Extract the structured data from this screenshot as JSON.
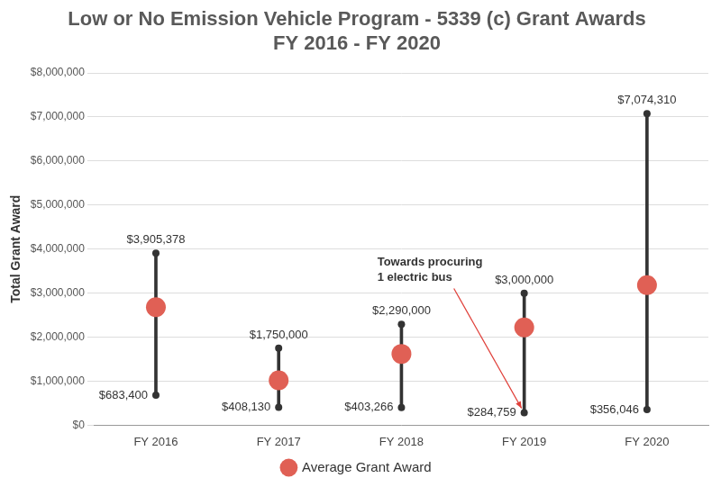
{
  "chart_data": {
    "type": "range",
    "title": [
      "Low or No Emission Vehicle Program - 5339 (c) Grant Awards",
      "FY 2016 - FY 2020"
    ],
    "y_label": "Total Grant Award",
    "categories": [
      "FY 2016",
      "FY 2017",
      "FY 2018",
      "FY 2019",
      "FY 2020"
    ],
    "ranges": {
      "color": "#333333",
      "low": [
        683400,
        408130,
        403266,
        284759,
        356046
      ],
      "low_labels": [
        "$683,400",
        "$408,130",
        "$403,266",
        "$284,759",
        "$356,046"
      ],
      "high": [
        3905378,
        1750000,
        2290000,
        3000000,
        7074310
      ],
      "high_labels": [
        "$3,905,378",
        "$1,750,000",
        "$2,290,000",
        "$3,000,000",
        "$7,074,310"
      ]
    },
    "series": [
      {
        "name": "Average Grant Award",
        "color": "#e06055",
        "marker": "circle",
        "values": [
          2680000,
          1020000,
          1620000,
          2220000,
          3180000
        ]
      }
    ],
    "ylim": [
      0,
      8000000
    ],
    "yticks": [
      {
        "value": 0,
        "label": "$0"
      },
      {
        "value": 1000000,
        "label": "$1,000,000"
      },
      {
        "value": 2000000,
        "label": "$2,000,000"
      },
      {
        "value": 3000000,
        "label": "$3,000,000"
      },
      {
        "value": 4000000,
        "label": "$4,000,000"
      },
      {
        "value": 5000000,
        "label": "$5,000,000"
      },
      {
        "value": 6000000,
        "label": "$6,000,000"
      },
      {
        "value": 7000000,
        "label": "$7,000,000"
      },
      {
        "value": 8000000,
        "label": "$8,000,000"
      }
    ],
    "grid": true,
    "legend": "bottom",
    "data_labels": true,
    "annotation": {
      "text": [
        "Towards procuring",
        "1 electric bus"
      ],
      "category": "FY 2019",
      "color": "#e0403a"
    }
  }
}
